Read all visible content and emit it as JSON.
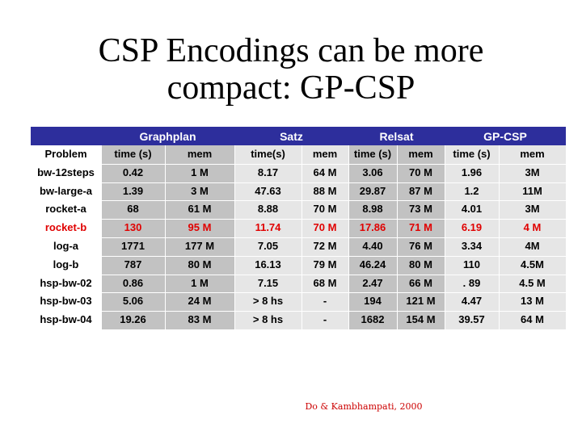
{
  "title": {
    "line1": "CSP Encodings can be more",
    "line2": "compact: GP-CSP"
  },
  "table": {
    "groups": [
      "Graphplan",
      "Satz",
      "Relsat",
      "GP-CSP"
    ],
    "columns": [
      "Problem",
      "time (s)",
      "mem",
      "time(s)",
      "mem",
      "time (s)",
      "mem",
      "time (s)",
      "mem"
    ],
    "rows": [
      {
        "cells": [
          "bw-12steps",
          "0.42",
          "1 M",
          "8.17",
          "64 M",
          "3.06",
          "70 M",
          "1.96",
          "3M"
        ],
        "highlight": false
      },
      {
        "cells": [
          "bw-large-a",
          "1.39",
          "3 M",
          "47.63",
          "88 M",
          "29.87",
          "87 M",
          "1.2",
          "11M"
        ],
        "highlight": false
      },
      {
        "cells": [
          "rocket-a",
          "68",
          "61 M",
          "8.88",
          "70 M",
          "8.98",
          "73 M",
          "4.01",
          "3M"
        ],
        "highlight": false
      },
      {
        "cells": [
          "rocket-b",
          "130",
          "95 M",
          "11.74",
          "70 M",
          "17.86",
          "71 M",
          "6.19",
          "4 M"
        ],
        "highlight": true
      },
      {
        "cells": [
          "log-a",
          "1771",
          "177 M",
          "7.05",
          "72 M",
          "4.40",
          "76 M",
          "3.34",
          "4M"
        ],
        "highlight": false
      },
      {
        "cells": [
          "log-b",
          "787",
          "80 M",
          "16.13",
          "79 M",
          "46.24",
          "80 M",
          "110",
          "4.5M"
        ],
        "highlight": false
      },
      {
        "cells": [
          "hsp-bw-02",
          "0.86",
          "1 M",
          "7.15",
          "68 M",
          "2.47",
          "66 M",
          ". 89",
          "4.5 M"
        ],
        "highlight": false
      },
      {
        "cells": [
          "hsp-bw-03",
          "5.06",
          "24 M",
          "> 8 hs",
          "-",
          "194",
          "121 M",
          "4.47",
          "13 M"
        ],
        "highlight": false
      },
      {
        "cells": [
          "hsp-bw-04",
          "19.26",
          "83 M",
          "> 8 hs",
          "-",
          "1682",
          "154 M",
          "39.57",
          "64 M"
        ],
        "highlight": false
      }
    ],
    "highlight_color": "#e00000"
  },
  "citation": "Do & Kambhampati, 2000"
}
